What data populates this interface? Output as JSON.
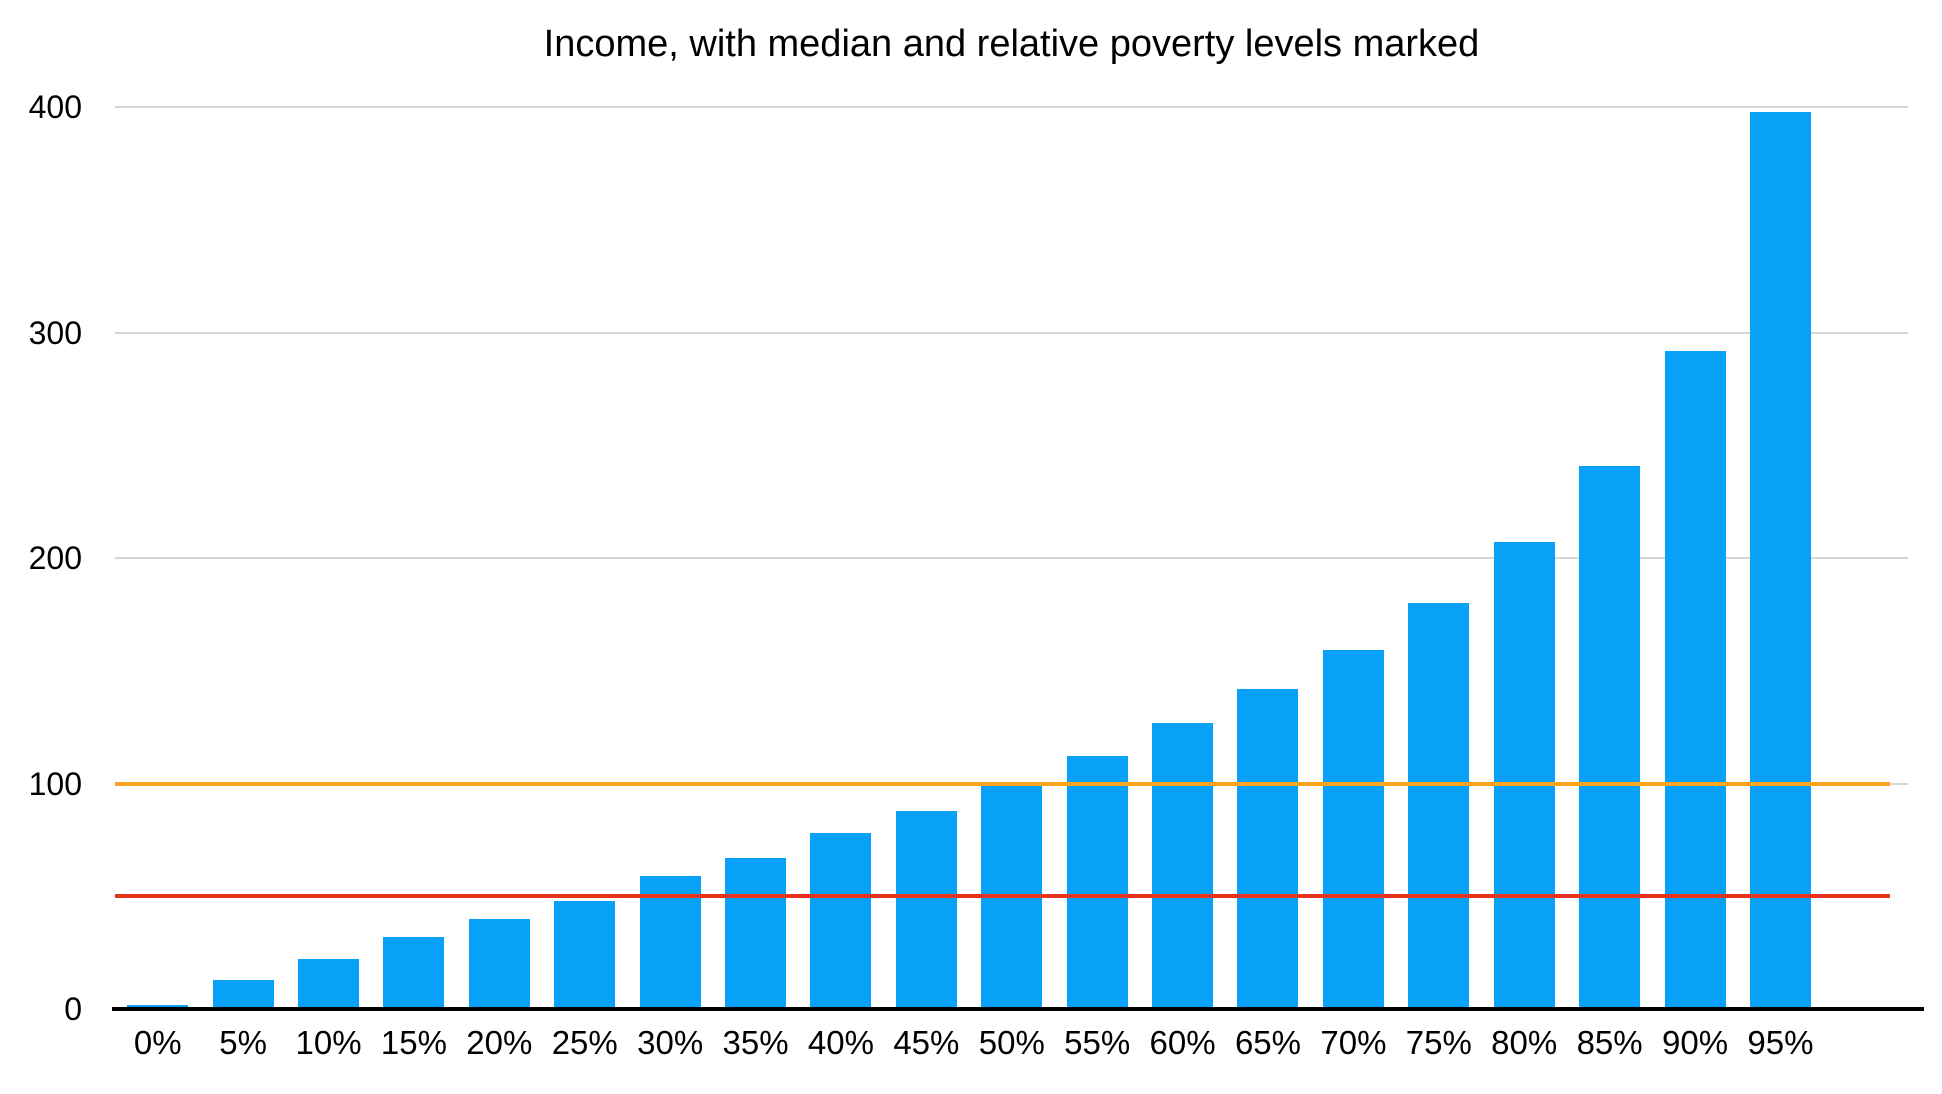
{
  "chart_data": {
    "type": "bar",
    "title": "Income, with median and relative poverty levels marked",
    "categories": [
      "0%",
      "5%",
      "10%",
      "15%",
      "20%",
      "25%",
      "30%",
      "35%",
      "40%",
      "45%",
      "50%",
      "55%",
      "60%",
      "65%",
      "70%",
      "75%",
      "80%",
      "85%",
      "90%",
      "95%"
    ],
    "values": [
      2,
      13,
      22,
      32,
      40,
      48,
      59,
      67,
      78,
      88,
      100,
      112,
      127,
      142,
      159,
      180,
      207,
      241,
      292,
      398
    ],
    "xlabel": "",
    "ylabel": "",
    "ylim": [
      0,
      400
    ],
    "yticks": [
      0,
      100,
      200,
      300,
      400
    ],
    "grid": "horizontal-gridlines-at-100-200-300-400",
    "legend": "none",
    "reference_lines": [
      {
        "name": "median",
        "value": 100,
        "color": "#fda31d"
      },
      {
        "name": "relative-poverty",
        "value": 50,
        "color": "#e8331f"
      }
    ],
    "colors": {
      "bar": "#09a1f8",
      "gridline": "#d4d4d4",
      "axis": "#000000",
      "text": "#000000",
      "background": "#ffffff"
    }
  }
}
